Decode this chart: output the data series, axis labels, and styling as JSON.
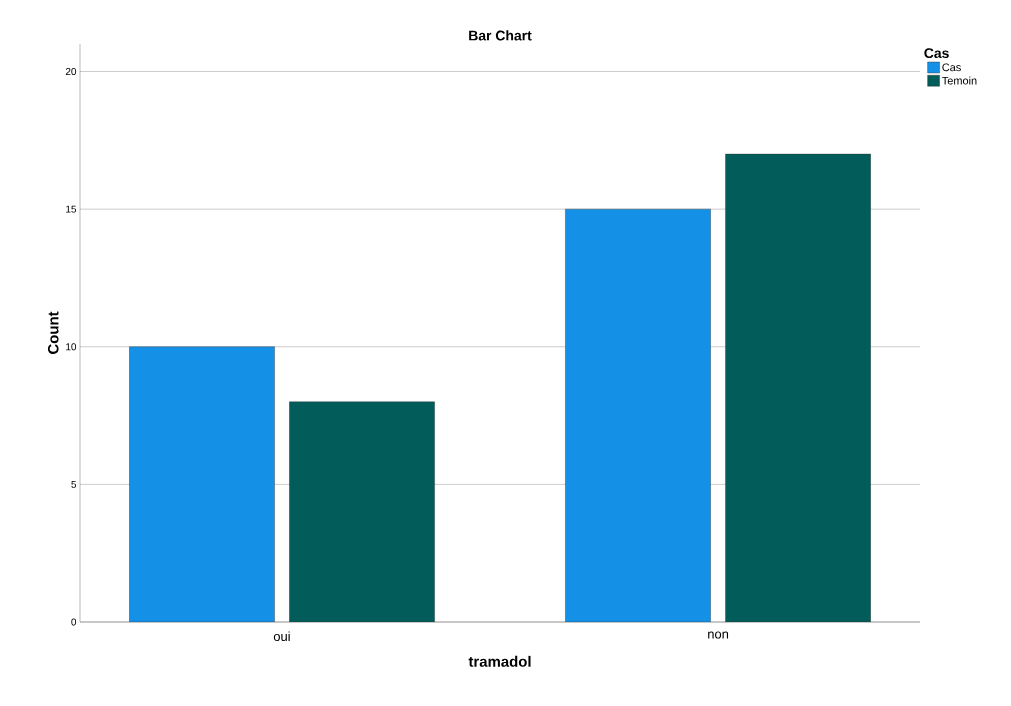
{
  "chart_data": {
    "type": "bar",
    "title": "Bar Chart",
    "xlabel": "tramadol",
    "ylabel": "Count",
    "legend_title": "Cas",
    "categories": [
      "oui",
      "non"
    ],
    "series": [
      {
        "name": "Cas",
        "color": "#1490e6",
        "values": [
          10,
          15
        ]
      },
      {
        "name": "Temoin",
        "color": "#015c5a",
        "values": [
          8,
          17
        ]
      }
    ],
    "ylim": [
      0,
      21
    ],
    "yticks": [
      0,
      5,
      10,
      15,
      20
    ],
    "grid": "y",
    "legend": "top right"
  }
}
